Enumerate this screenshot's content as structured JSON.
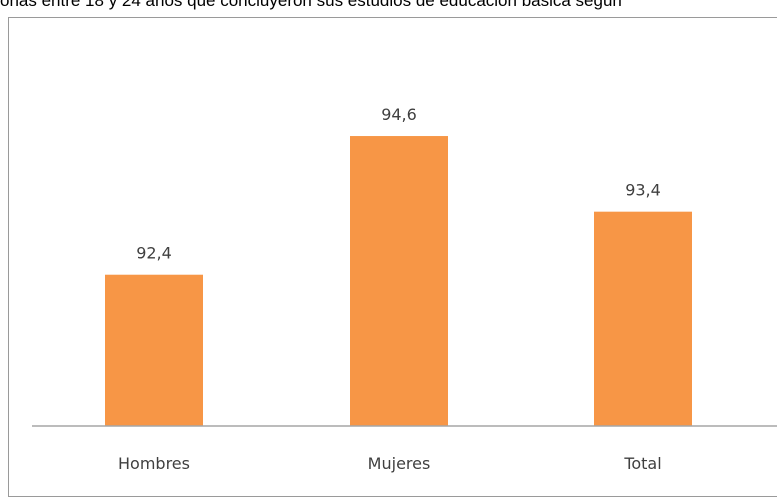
{
  "chart_data": {
    "type": "bar",
    "title": "onas entre 18 y 24 años que concluyeron sus estudios de educación básica segun",
    "xlabel": "",
    "ylabel": "",
    "categories": [
      "Hombres",
      "Mujeres",
      "Total"
    ],
    "values": [
      92.4,
      94.6,
      93.4
    ],
    "data_labels": [
      "92,4",
      "94,6",
      "93,4"
    ],
    "ylim": [
      90.0,
      95.6
    ],
    "bar_color": "#f79646",
    "axis_color": "#a6a6a6",
    "grid": false,
    "legend": "none"
  }
}
